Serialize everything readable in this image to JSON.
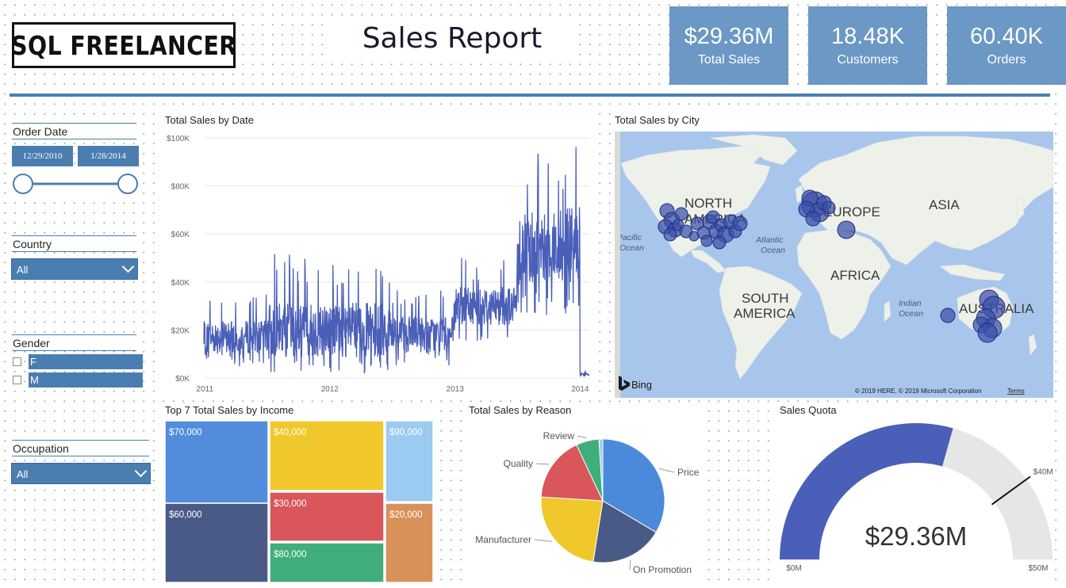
{
  "header": {
    "logo_text": "SQL FREELANCER",
    "title": "Sales Report",
    "kpis": [
      {
        "value": "$29.36M",
        "label": "Total Sales"
      },
      {
        "value": "18.48K",
        "label": "Customers"
      },
      {
        "value": "60.40K",
        "label": "Orders"
      }
    ]
  },
  "filters": {
    "order_date": {
      "label": "Order Date",
      "start": "12/29/2010",
      "end": "1/28/2014"
    },
    "country": {
      "label": "Country",
      "selected": "All"
    },
    "gender": {
      "label": "Gender",
      "options": [
        "F",
        "M"
      ]
    },
    "occupation": {
      "label": "Occupation",
      "selected": "All"
    }
  },
  "colors": {
    "accent": "#4a7eb0",
    "kpi_bg": "#6b98c4",
    "line": "#4a5fb8",
    "gauge_fill": "#4a5fb8",
    "gauge_track": "#e6e6e6",
    "map_water": "#a8c6ec",
    "map_land": "#eef0ea",
    "bubble": "#3a4fa8"
  },
  "map": {
    "title": "Total Sales by City",
    "labels": {
      "north_america_1": "NORTH",
      "north_america_2": "AMERICA",
      "europe": "EUROPE",
      "asia": "ASIA",
      "africa": "AFRICA",
      "south_america_1": "SOUTH",
      "south_america_2": "AMERICA",
      "australia": "AUSTRALIA",
      "pacific_1": "Pacific",
      "pacific_2": "Ocean",
      "atlantic_1": "Atlantic",
      "atlantic_2": "Ocean",
      "indian_1": "Indian",
      "indian_2": "Ocean"
    },
    "provider": "Bing",
    "copyright": "© 2019 HERE, © 2019 Microsoft Corporation",
    "terms": "Terms"
  },
  "chart_data": [
    {
      "type": "line",
      "title": "Total Sales by Date",
      "xlabel": "",
      "ylabel": "",
      "x_ticks": [
        "2011",
        "2012",
        "2013",
        "2014"
      ],
      "y_ticks": [
        "$0K",
        "$20K",
        "$40K",
        "$60K",
        "$80K",
        "$100K"
      ],
      "ylim": [
        0,
        100000
      ],
      "xlim": [
        "2010-12-29",
        "2014-01-28"
      ],
      "grid": true,
      "segments": [
        {
          "from": "2010-12-29",
          "to": "2011-06-30",
          "approx_low": 5000,
          "approx_high": 35000,
          "approx_mean": 17000
        },
        {
          "from": "2011-07-01",
          "to": "2012-06-30",
          "approx_low": 2000,
          "approx_high": 52000,
          "approx_mean": 20000
        },
        {
          "from": "2012-07-01",
          "to": "2012-12-31",
          "approx_low": 5000,
          "approx_high": 38000,
          "approx_mean": 18000
        },
        {
          "from": "2013-01-01",
          "to": "2013-06-30",
          "approx_low": 15000,
          "approx_high": 50000,
          "approx_mean": 30000
        },
        {
          "from": "2013-07-01",
          "to": "2013-12-31",
          "approx_low": 25000,
          "approx_high": 96000,
          "approx_mean": 55000
        },
        {
          "from": "2014-01-01",
          "to": "2014-01-28",
          "approx_low": 500,
          "approx_high": 3000,
          "approx_mean": 1500
        }
      ],
      "peak": {
        "x": "2013-12-20",
        "y": 96000
      }
    },
    {
      "type": "treemap",
      "title": "Top 7 Total Sales by Income",
      "categories": [
        "$70,000",
        "$60,000",
        "$40,000",
        "$30,000",
        "$80,000",
        "$90,000",
        "$20,000"
      ],
      "colors": [
        "#528ddb",
        "#4a5a86",
        "#f1c82b",
        "#d9565a",
        "#3fae7b",
        "#9bcbf1",
        "#d9915a"
      ]
    },
    {
      "type": "pie",
      "title": "Total Sales by Reason",
      "slices": [
        {
          "label": "Price",
          "value": 33.5,
          "color": "#4a8ad8"
        },
        {
          "label": "On Promotion",
          "value": 19.0,
          "color": "#4a5a86"
        },
        {
          "label": "Manufacturer",
          "value": 23.5,
          "color": "#f1c82b"
        },
        {
          "label": "Quality",
          "value": 17.0,
          "color": "#d9565a"
        },
        {
          "label": "Review",
          "value": 6.0,
          "color": "#3fae7b"
        },
        {
          "label": "",
          "value": 1.0,
          "color": "#9bcbf1"
        }
      ]
    },
    {
      "type": "gauge",
      "title": "Sales Quota",
      "value": 29.36,
      "value_label": "$29.36M",
      "min": 0,
      "max": 50,
      "target": 40,
      "min_label": "$0M",
      "max_label": "$50M",
      "target_label": "$40M"
    }
  ]
}
